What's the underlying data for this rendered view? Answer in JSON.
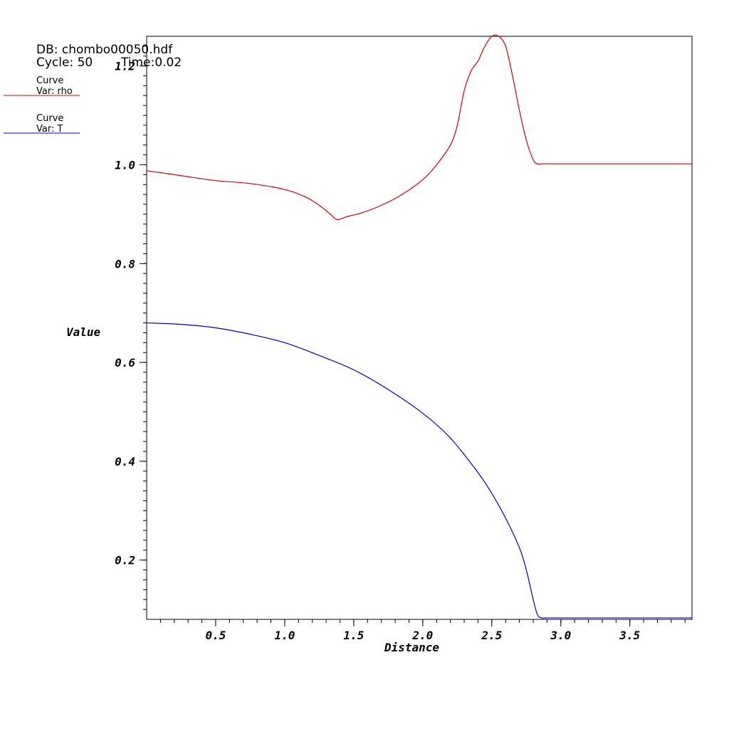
{
  "header": {
    "db_label": "DB: chombo00050.hdf",
    "cycle_label": "Cycle: 50",
    "time_label": "Time:0.02"
  },
  "legend": [
    {
      "title": "Curve",
      "var": "Var: rho",
      "color": "#dd0000"
    },
    {
      "title": "Curve",
      "var": "Var: T",
      "color": "#0000cc"
    }
  ],
  "chart_data": {
    "type": "line",
    "title": "",
    "xlabel": "Distance",
    "ylabel": "Value",
    "xlim": [
      0.0,
      3.95
    ],
    "ylim": [
      0.08,
      1.26
    ],
    "grid": false,
    "legend_position": "top-left",
    "x_ticks": [
      "0.5",
      "1.0",
      "1.5",
      "2.0",
      "2.5",
      "3.0",
      "3.5"
    ],
    "x_tick_values": [
      0.5,
      1.0,
      1.5,
      2.0,
      2.5,
      3.0,
      3.5
    ],
    "y_ticks": [
      "0.2",
      "0.4",
      "0.6",
      "0.8",
      "1.0",
      "1.2"
    ],
    "y_tick_values": [
      0.2,
      0.4,
      0.6,
      0.8,
      1.0,
      1.2
    ],
    "series": [
      {
        "name": "rho",
        "color": "#dd0000",
        "x": [
          0.0,
          0.25,
          0.5,
          0.75,
          1.0,
          1.15,
          1.25,
          1.33,
          1.37,
          1.4,
          1.45,
          1.55,
          1.7,
          1.85,
          2.0,
          2.1,
          2.2,
          2.25,
          2.3,
          2.35,
          2.4,
          2.45,
          2.5,
          2.55,
          2.6,
          2.65,
          2.7,
          2.75,
          2.8,
          2.83,
          2.86,
          2.9,
          3.0,
          3.5,
          3.95
        ],
        "y": [
          0.988,
          0.978,
          0.968,
          0.962,
          0.95,
          0.935,
          0.918,
          0.9,
          0.89,
          0.89,
          0.895,
          0.902,
          0.918,
          0.94,
          0.97,
          1.0,
          1.04,
          1.08,
          1.15,
          1.19,
          1.21,
          1.24,
          1.26,
          1.26,
          1.24,
          1.18,
          1.11,
          1.05,
          1.01,
          1.002,
          1.002,
          1.002,
          1.002,
          1.002,
          1.002
        ]
      },
      {
        "name": "T",
        "color": "#0000cc",
        "x": [
          0.0,
          0.25,
          0.5,
          0.75,
          1.0,
          1.25,
          1.5,
          1.75,
          2.0,
          2.2,
          2.4,
          2.5,
          2.6,
          2.7,
          2.75,
          2.8,
          2.83,
          2.86,
          2.9,
          3.0,
          3.5,
          3.95
        ],
        "y": [
          0.68,
          0.677,
          0.67,
          0.657,
          0.64,
          0.614,
          0.585,
          0.545,
          0.497,
          0.447,
          0.377,
          0.335,
          0.285,
          0.225,
          0.18,
          0.12,
          0.09,
          0.083,
          0.083,
          0.083,
          0.083,
          0.083
        ]
      }
    ]
  }
}
